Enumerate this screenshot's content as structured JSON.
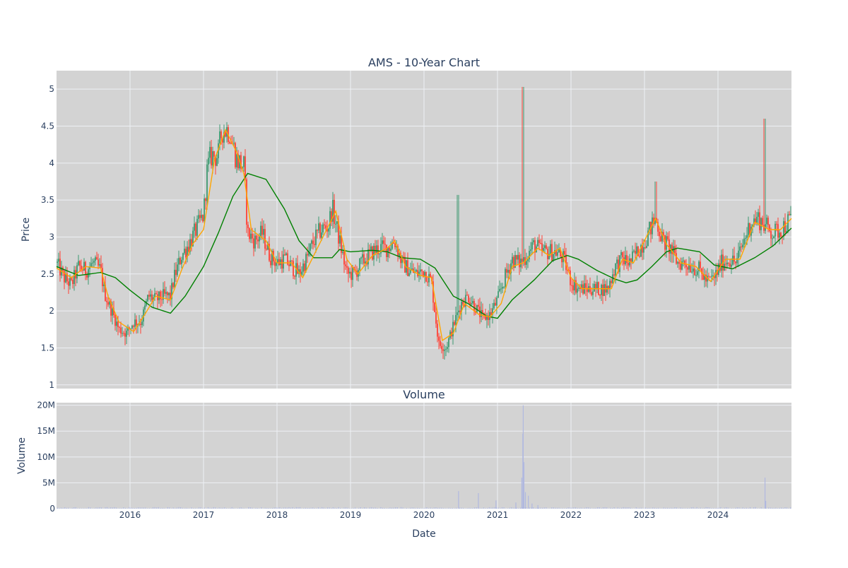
{
  "chart_data": [
    {
      "type": "candlestick",
      "title": "AMS - 10-Year Chart",
      "xlabel": "",
      "ylabel": "Price",
      "ylim": [
        0.95,
        5.25
      ],
      "yticks": [
        1,
        1.5,
        2,
        2.5,
        3,
        3.5,
        4,
        4.5,
        5
      ],
      "xrange": [
        2015.0,
        2025.0
      ],
      "xticks": [
        {
          "value": 2016,
          "label": "2016"
        },
        {
          "value": 2017,
          "label": "2017"
        },
        {
          "value": 2018,
          "label": "2018"
        },
        {
          "value": 2019,
          "label": "2019"
        },
        {
          "value": 2020,
          "label": "2020"
        },
        {
          "value": 2021,
          "label": "2021"
        },
        {
          "value": 2022,
          "label": "2022"
        },
        {
          "value": 2023,
          "label": "2023"
        },
        {
          "value": 2024,
          "label": "2024"
        }
      ],
      "grid": true,
      "colors": {
        "increasing": "#3d9970",
        "decreasing": "#ff4136",
        "ma_short": "#ffa500",
        "ma_long": "#008000",
        "plot_bg": "#d3d3d3",
        "grid": "#eef0f4"
      },
      "price_path": [
        [
          2015.0,
          2.65
        ],
        [
          2015.1,
          2.45
        ],
        [
          2015.2,
          2.35
        ],
        [
          2015.3,
          2.6
        ],
        [
          2015.4,
          2.55
        ],
        [
          2015.5,
          2.65
        ],
        [
          2015.6,
          2.55
        ],
        [
          2015.65,
          2.25
        ],
        [
          2015.75,
          2.0
        ],
        [
          2015.85,
          1.75
        ],
        [
          2015.95,
          1.7
        ],
        [
          2016.05,
          1.85
        ],
        [
          2016.15,
          1.85
        ],
        [
          2016.25,
          2.2
        ],
        [
          2016.35,
          2.15
        ],
        [
          2016.45,
          2.2
        ],
        [
          2016.55,
          2.2
        ],
        [
          2016.6,
          2.45
        ],
        [
          2016.7,
          2.75
        ],
        [
          2016.8,
          2.9
        ],
        [
          2016.9,
          3.1
        ],
        [
          2017.0,
          3.3
        ],
        [
          2017.05,
          3.9
        ],
        [
          2017.1,
          4.1
        ],
        [
          2017.2,
          4.1
        ],
        [
          2017.25,
          4.45
        ],
        [
          2017.35,
          4.45
        ],
        [
          2017.45,
          4.05
        ],
        [
          2017.55,
          3.95
        ],
        [
          2017.6,
          3.05
        ],
        [
          2017.7,
          2.95
        ],
        [
          2017.8,
          3.05
        ],
        [
          2017.9,
          2.75
        ],
        [
          2018.0,
          2.65
        ],
        [
          2018.1,
          2.7
        ],
        [
          2018.2,
          2.6
        ],
        [
          2018.3,
          2.5
        ],
        [
          2018.4,
          2.7
        ],
        [
          2018.5,
          2.95
        ],
        [
          2018.6,
          3.1
        ],
        [
          2018.7,
          3.15
        ],
        [
          2018.75,
          3.4
        ],
        [
          2018.85,
          2.95
        ],
        [
          2018.95,
          2.5
        ],
        [
          2019.05,
          2.5
        ],
        [
          2019.15,
          2.65
        ],
        [
          2019.3,
          2.8
        ],
        [
          2019.4,
          2.85
        ],
        [
          2019.5,
          2.85
        ],
        [
          2019.6,
          2.95
        ],
        [
          2019.7,
          2.65
        ],
        [
          2019.8,
          2.55
        ],
        [
          2019.9,
          2.5
        ],
        [
          2020.0,
          2.55
        ],
        [
          2020.1,
          2.4
        ],
        [
          2020.2,
          1.55
        ],
        [
          2020.3,
          1.5
        ],
        [
          2020.4,
          1.8
        ],
        [
          2020.5,
          2.1
        ],
        [
          2020.6,
          2.2
        ],
        [
          2020.7,
          2.05
        ],
        [
          2020.8,
          1.9
        ],
        [
          2020.9,
          1.95
        ],
        [
          2021.0,
          2.15
        ],
        [
          2021.1,
          2.45
        ],
        [
          2021.2,
          2.7
        ],
        [
          2021.3,
          2.65
        ],
        [
          2021.4,
          2.75
        ],
        [
          2021.5,
          2.9
        ],
        [
          2021.6,
          2.8
        ],
        [
          2021.7,
          2.8
        ],
        [
          2021.8,
          2.8
        ],
        [
          2021.9,
          2.7
        ],
        [
          2022.0,
          2.4
        ],
        [
          2022.1,
          2.3
        ],
        [
          2022.2,
          2.3
        ],
        [
          2022.3,
          2.3
        ],
        [
          2022.4,
          2.3
        ],
        [
          2022.5,
          2.3
        ],
        [
          2022.6,
          2.6
        ],
        [
          2022.7,
          2.7
        ],
        [
          2022.8,
          2.65
        ],
        [
          2022.9,
          2.8
        ],
        [
          2023.0,
          2.95
        ],
        [
          2023.1,
          3.15
        ],
        [
          2023.15,
          3.25
        ],
        [
          2023.25,
          2.95
        ],
        [
          2023.35,
          2.85
        ],
        [
          2023.45,
          2.65
        ],
        [
          2023.55,
          2.65
        ],
        [
          2023.65,
          2.6
        ],
        [
          2023.75,
          2.55
        ],
        [
          2023.85,
          2.4
        ],
        [
          2023.95,
          2.45
        ],
        [
          2024.05,
          2.65
        ],
        [
          2024.15,
          2.7
        ],
        [
          2024.25,
          2.65
        ],
        [
          2024.35,
          2.95
        ],
        [
          2024.45,
          3.2
        ],
        [
          2024.55,
          3.25
        ],
        [
          2024.65,
          3.15
        ],
        [
          2024.75,
          3.05
        ],
        [
          2024.85,
          3.1
        ],
        [
          2024.95,
          3.2
        ],
        [
          2025.0,
          3.25
        ]
      ],
      "spikes": [
        {
          "x": 2020.47,
          "high": 3.57
        },
        {
          "x": 2021.35,
          "high": 5.03
        },
        {
          "x": 2023.16,
          "high": 3.75
        },
        {
          "x": 2024.64,
          "high": 4.6
        }
      ],
      "series": [
        {
          "kind": "line",
          "color": "#008000",
          "points": [
            [
              2015.0,
              2.6
            ],
            [
              2015.3,
              2.48
            ],
            [
              2015.6,
              2.52
            ],
            [
              2015.8,
              2.45
            ],
            [
              2016.0,
              2.28
            ],
            [
              2016.3,
              2.05
            ],
            [
              2016.55,
              1.97
            ],
            [
              2016.75,
              2.2
            ],
            [
              2017.0,
              2.6
            ],
            [
              2017.2,
              3.05
            ],
            [
              2017.4,
              3.55
            ],
            [
              2017.6,
              3.86
            ],
            [
              2017.85,
              3.78
            ],
            [
              2018.1,
              3.38
            ],
            [
              2018.3,
              2.95
            ],
            [
              2018.5,
              2.72
            ],
            [
              2018.75,
              2.72
            ],
            [
              2018.85,
              2.83
            ],
            [
              2019.0,
              2.8
            ],
            [
              2019.3,
              2.82
            ],
            [
              2019.5,
              2.8
            ],
            [
              2019.7,
              2.72
            ],
            [
              2019.95,
              2.7
            ],
            [
              2020.15,
              2.58
            ],
            [
              2020.4,
              2.2
            ],
            [
              2020.6,
              2.1
            ],
            [
              2020.85,
              1.93
            ],
            [
              2021.0,
              1.9
            ],
            [
              2021.2,
              2.15
            ],
            [
              2021.5,
              2.42
            ],
            [
              2021.75,
              2.68
            ],
            [
              2021.95,
              2.75
            ],
            [
              2022.1,
              2.7
            ],
            [
              2022.35,
              2.55
            ],
            [
              2022.6,
              2.43
            ],
            [
              2022.75,
              2.38
            ],
            [
              2022.9,
              2.42
            ],
            [
              2023.1,
              2.6
            ],
            [
              2023.3,
              2.8
            ],
            [
              2023.45,
              2.85
            ],
            [
              2023.75,
              2.8
            ],
            [
              2023.95,
              2.62
            ],
            [
              2024.2,
              2.57
            ],
            [
              2024.5,
              2.72
            ],
            [
              2024.75,
              2.88
            ],
            [
              2025.0,
              3.12
            ]
          ]
        },
        {
          "kind": "line",
          "color": "#ffa500",
          "points": [
            [
              2015.0,
              2.58
            ],
            [
              2015.2,
              2.45
            ],
            [
              2015.4,
              2.6
            ],
            [
              2015.6,
              2.58
            ],
            [
              2015.7,
              2.2
            ],
            [
              2015.85,
              1.85
            ],
            [
              2016.05,
              1.72
            ],
            [
              2016.2,
              1.95
            ],
            [
              2016.35,
              2.2
            ],
            [
              2016.55,
              2.15
            ],
            [
              2016.7,
              2.55
            ],
            [
              2016.85,
              2.9
            ],
            [
              2017.0,
              3.1
            ],
            [
              2017.15,
              4.05
            ],
            [
              2017.3,
              4.45
            ],
            [
              2017.45,
              4.15
            ],
            [
              2017.55,
              3.85
            ],
            [
              2017.65,
              3.1
            ],
            [
              2017.85,
              2.95
            ],
            [
              2018.0,
              2.65
            ],
            [
              2018.2,
              2.65
            ],
            [
              2018.35,
              2.45
            ],
            [
              2018.5,
              2.75
            ],
            [
              2018.65,
              3.05
            ],
            [
              2018.8,
              3.35
            ],
            [
              2018.95,
              2.7
            ],
            [
              2019.1,
              2.5
            ],
            [
              2019.3,
              2.75
            ],
            [
              2019.5,
              2.85
            ],
            [
              2019.6,
              2.95
            ],
            [
              2019.75,
              2.6
            ],
            [
              2019.95,
              2.48
            ],
            [
              2020.1,
              2.45
            ],
            [
              2020.25,
              1.6
            ],
            [
              2020.4,
              1.7
            ],
            [
              2020.55,
              2.1
            ],
            [
              2020.75,
              1.95
            ],
            [
              2020.9,
              1.92
            ],
            [
              2021.05,
              2.1
            ],
            [
              2021.2,
              2.6
            ],
            [
              2021.35,
              2.65
            ],
            [
              2021.55,
              2.85
            ],
            [
              2021.7,
              2.75
            ],
            [
              2021.85,
              2.85
            ],
            [
              2022.0,
              2.45
            ],
            [
              2022.15,
              2.3
            ],
            [
              2022.35,
              2.3
            ],
            [
              2022.55,
              2.3
            ],
            [
              2022.7,
              2.7
            ],
            [
              2022.85,
              2.65
            ],
            [
              2023.0,
              2.95
            ],
            [
              2023.15,
              3.25
            ],
            [
              2023.3,
              2.9
            ],
            [
              2023.5,
              2.65
            ],
            [
              2023.7,
              2.6
            ],
            [
              2023.9,
              2.4
            ],
            [
              2024.1,
              2.7
            ],
            [
              2024.3,
              2.7
            ],
            [
              2024.5,
              3.2
            ],
            [
              2024.7,
              3.1
            ],
            [
              2024.85,
              3.1
            ],
            [
              2025.0,
              3.25
            ]
          ]
        }
      ]
    },
    {
      "type": "bar",
      "title": "Volume",
      "xlabel": "Date",
      "ylabel": "Volume",
      "ylim": [
        0,
        20500000
      ],
      "yticks": [
        {
          "value": 0,
          "label": "0"
        },
        {
          "value": 5000000,
          "label": "5M"
        },
        {
          "value": 10000000,
          "label": "10M"
        },
        {
          "value": 15000000,
          "label": "15M"
        },
        {
          "value": 20000000,
          "label": "20M"
        }
      ],
      "xrange": [
        2015.0,
        2025.0
      ],
      "xticks": [
        {
          "value": 2016,
          "label": "2016"
        },
        {
          "value": 2017,
          "label": "2017"
        },
        {
          "value": 2018,
          "label": "2018"
        },
        {
          "value": 2019,
          "label": "2019"
        },
        {
          "value": 2020,
          "label": "2020"
        },
        {
          "value": 2021,
          "label": "2021"
        },
        {
          "value": 2022,
          "label": "2022"
        },
        {
          "value": 2023,
          "label": "2023"
        },
        {
          "value": 2024,
          "label": "2024"
        }
      ],
      "bar_color": "#b0b8e0",
      "spikes": [
        [
          2020.47,
          3400000
        ],
        [
          2020.74,
          3000000
        ],
        [
          2020.98,
          1600000
        ],
        [
          2021.25,
          1200000
        ],
        [
          2021.33,
          6000000
        ],
        [
          2021.345,
          14500000
        ],
        [
          2021.35,
          20000000
        ],
        [
          2021.36,
          9000000
        ],
        [
          2021.38,
          3200000
        ],
        [
          2021.42,
          2500000
        ],
        [
          2021.47,
          1000000
        ],
        [
          2021.55,
          700000
        ],
        [
          2024.64,
          6000000
        ],
        [
          2024.65,
          1500000
        ]
      ]
    }
  ]
}
